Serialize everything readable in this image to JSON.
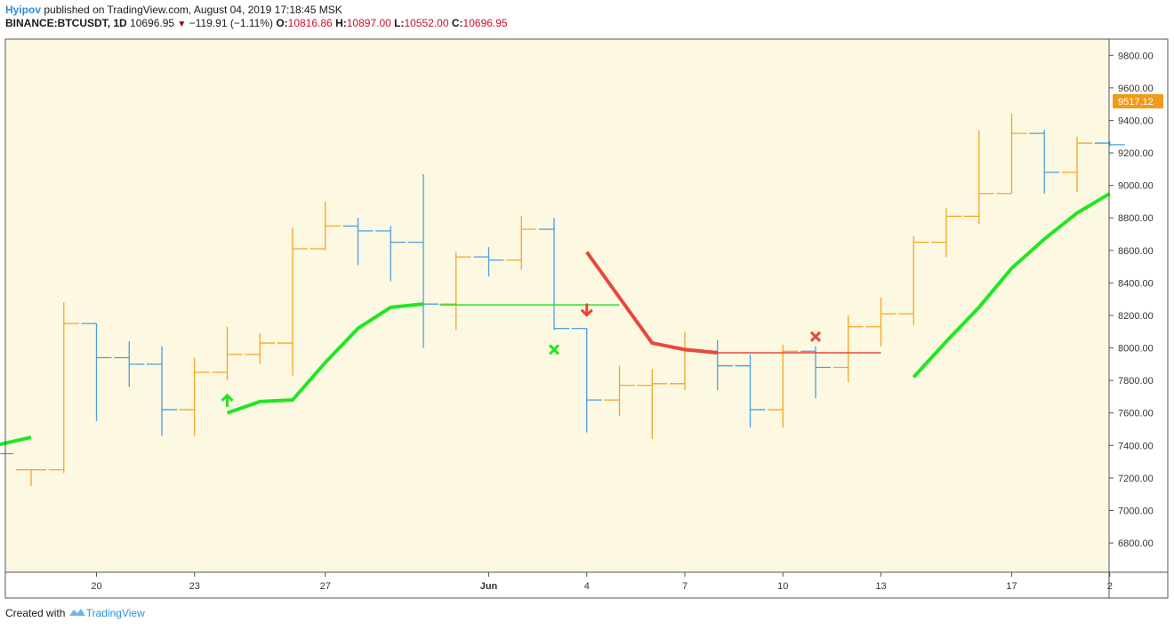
{
  "header": {
    "author": "Hyipov",
    "published_text": "published on TradingView.com, August 04, 2019 17:18:45 MSK",
    "symbol": "BINANCE:BTCUSDT, 1D",
    "last": "10696.95",
    "change": "−119.91 (−1.11%)",
    "o_label": "O:",
    "o_value": "10816.86",
    "h_label": "H:",
    "h_value": "10897.00",
    "l_label": "L:",
    "l_value": "10552.00",
    "c_label": "C:",
    "c_value": "10696.95"
  },
  "footer": {
    "created_with": "Created with",
    "brand": "TradingView"
  },
  "chart_data": {
    "type": "ohlc",
    "colors": {
      "up": "#f5a623",
      "down": "#4a9fe0",
      "background": "#fdf8e1",
      "trend_up": "#22e622",
      "trend_down": "#e8473a",
      "price_tag": "#f29a1a"
    },
    "price_tag": "9517.12",
    "y_ticks": [
      "9800.00",
      "9600.00",
      "9400.00",
      "9200.00",
      "9000.00",
      "8800.00",
      "8600.00",
      "8400.00",
      "8200.00",
      "8000.00",
      "7800.00",
      "7600.00",
      "7400.00",
      "7200.00",
      "7000.00",
      "6800.00"
    ],
    "y_range": [
      6620,
      9900
    ],
    "x_ticks": [
      {
        "day": 2,
        "label": "20"
      },
      {
        "day": 5,
        "label": "23"
      },
      {
        "day": 9,
        "label": "27"
      },
      {
        "day": 14,
        "label": "Jun"
      },
      {
        "day": 17,
        "label": "4"
      },
      {
        "day": 20,
        "label": "7"
      },
      {
        "day": 23,
        "label": "10"
      },
      {
        "day": 26,
        "label": "13"
      },
      {
        "day": 30,
        "label": "17"
      },
      {
        "day": 33,
        "label": "2"
      }
    ],
    "bars": [
      {
        "day": -1,
        "o": 7410,
        "h": 7420,
        "l": 7150,
        "c": 7350
      },
      {
        "day": 0,
        "o": 7250,
        "h": 7250,
        "l": 7150,
        "c": 7250
      },
      {
        "day": 1,
        "o": 7250,
        "h": 8280,
        "l": 7230,
        "c": 8150
      },
      {
        "day": 2,
        "o": 8150,
        "h": 8150,
        "l": 7550,
        "c": 7940
      },
      {
        "day": 3,
        "o": 7940,
        "h": 8040,
        "l": 7760,
        "c": 7900
      },
      {
        "day": 4,
        "o": 7900,
        "h": 8010,
        "l": 7460,
        "c": 7620
      },
      {
        "day": 5,
        "o": 7620,
        "h": 7940,
        "l": 7460,
        "c": 7850
      },
      {
        "day": 6,
        "o": 7850,
        "h": 8130,
        "l": 7800,
        "c": 7960
      },
      {
        "day": 7,
        "o": 7960,
        "h": 8090,
        "l": 7900,
        "c": 8030
      },
      {
        "day": 8,
        "o": 8030,
        "h": 8740,
        "l": 7830,
        "c": 8610
      },
      {
        "day": 9,
        "o": 8610,
        "h": 8900,
        "l": 8600,
        "c": 8750
      },
      {
        "day": 10,
        "o": 8750,
        "h": 8800,
        "l": 8510,
        "c": 8720
      },
      {
        "day": 11,
        "o": 8720,
        "h": 8750,
        "l": 8410,
        "c": 8650
      },
      {
        "day": 12,
        "o": 8650,
        "h": 9070,
        "l": 8000,
        "c": 8270
      },
      {
        "day": 13,
        "o": 8270,
        "h": 8590,
        "l": 8110,
        "c": 8560
      },
      {
        "day": 14,
        "o": 8560,
        "h": 8620,
        "l": 8440,
        "c": 8540
      },
      {
        "day": 15,
        "o": 8540,
        "h": 8810,
        "l": 8480,
        "c": 8730
      },
      {
        "day": 16,
        "o": 8730,
        "h": 8800,
        "l": 8110,
        "c": 8120
      },
      {
        "day": 17,
        "o": 8120,
        "h": 8120,
        "l": 7480,
        "c": 7680
      },
      {
        "day": 18,
        "o": 7680,
        "h": 7890,
        "l": 7580,
        "c": 7770
      },
      {
        "day": 19,
        "o": 7770,
        "h": 7870,
        "l": 7440,
        "c": 7780
      },
      {
        "day": 20,
        "o": 7780,
        "h": 8100,
        "l": 7740,
        "c": 7980
      },
      {
        "day": 21,
        "o": 7980,
        "h": 8050,
        "l": 7740,
        "c": 7890
      },
      {
        "day": 22,
        "o": 7890,
        "h": 7960,
        "l": 7510,
        "c": 7620
      },
      {
        "day": 23,
        "o": 7620,
        "h": 8020,
        "l": 7510,
        "c": 7980
      },
      {
        "day": 24,
        "o": 7980,
        "h": 8010,
        "l": 7690,
        "c": 7880
      },
      {
        "day": 25,
        "o": 7880,
        "h": 8200,
        "l": 7790,
        "c": 8130
      },
      {
        "day": 26,
        "o": 8130,
        "h": 8310,
        "l": 8010,
        "c": 8210
      },
      {
        "day": 27,
        "o": 8210,
        "h": 8690,
        "l": 8140,
        "c": 8650
      },
      {
        "day": 28,
        "o": 8650,
        "h": 8860,
        "l": 8560,
        "c": 8810
      },
      {
        "day": 29,
        "o": 8810,
        "h": 9340,
        "l": 8760,
        "c": 8950
      },
      {
        "day": 30,
        "o": 8950,
        "h": 9440,
        "l": 8950,
        "c": 9320
      },
      {
        "day": 31,
        "o": 9320,
        "h": 9340,
        "l": 8950,
        "c": 9080
      },
      {
        "day": 32,
        "o": 9080,
        "h": 9300,
        "l": 8960,
        "c": 9260
      },
      {
        "day": 33,
        "o": 9260,
        "h": 9270,
        "l": 9240,
        "c": 9250
      }
    ],
    "trend_segments": [
      {
        "color": "up",
        "points": [
          [
            -1.1,
            7400
          ],
          [
            0,
            7450
          ]
        ]
      },
      {
        "color": "up",
        "points": [
          [
            6,
            7600
          ],
          [
            7,
            7670
          ],
          [
            8,
            7680
          ],
          [
            9,
            7910
          ],
          [
            10,
            8120
          ],
          [
            11,
            8250
          ],
          [
            12,
            8270
          ]
        ]
      },
      {
        "color": "down",
        "points": [
          [
            17,
            8590
          ],
          [
            18,
            8310
          ],
          [
            19,
            8030
          ],
          [
            20,
            7990
          ],
          [
            21,
            7970
          ]
        ]
      },
      {
        "color": "up",
        "points": [
          [
            27,
            7820
          ],
          [
            28,
            8040
          ],
          [
            29,
            8250
          ],
          [
            30,
            8490
          ],
          [
            31,
            8670
          ],
          [
            32,
            8830
          ],
          [
            33,
            8950
          ]
        ]
      }
    ],
    "level_lines": [
      {
        "color": "up",
        "from": 12.5,
        "to": 18.0,
        "value": 8265
      },
      {
        "color": "down",
        "from": 21,
        "to": 26.0,
        "value": 7970
      }
    ],
    "markers": [
      {
        "type": "arrow-up",
        "day": 6,
        "value": 7670,
        "color": "up"
      },
      {
        "type": "cross",
        "day": 16,
        "value": 7990,
        "color": "up"
      },
      {
        "type": "arrow-down",
        "day": 17,
        "value": 8240,
        "color": "down"
      },
      {
        "type": "cross",
        "day": 24,
        "value": 8070,
        "color": "down"
      }
    ]
  }
}
